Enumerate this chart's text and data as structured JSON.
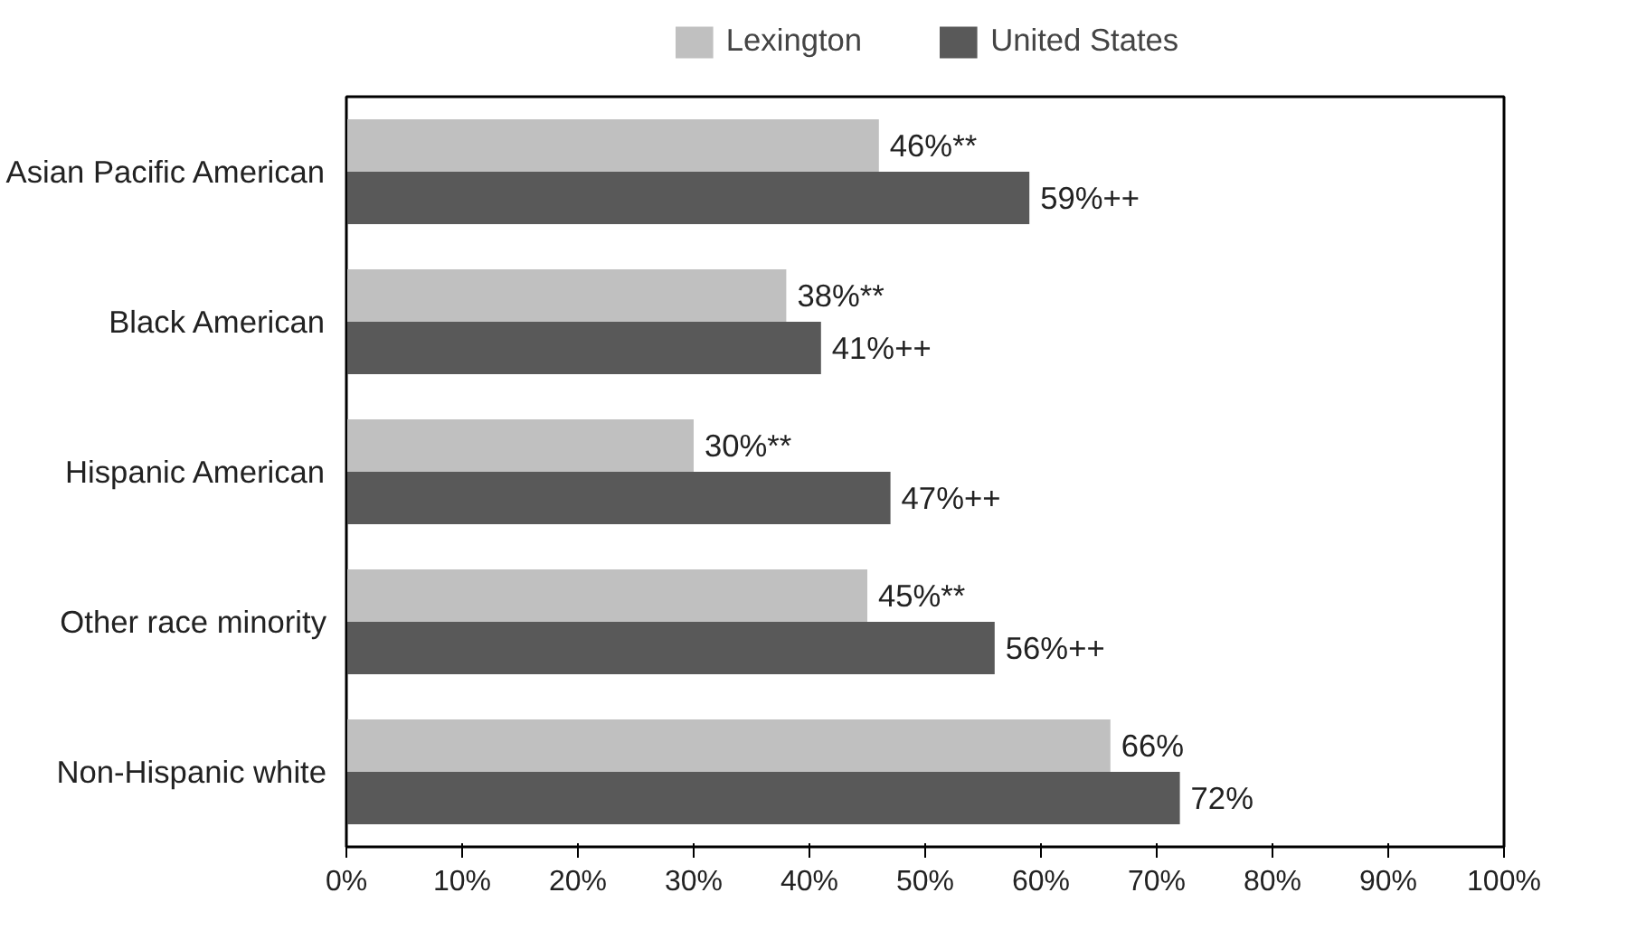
{
  "chart_data": {
    "type": "bar",
    "orientation": "horizontal",
    "categories": [
      "Asian Pacific American",
      "Black American",
      "Hispanic American",
      "Other race minority",
      "Non-Hispanic white"
    ],
    "series": [
      {
        "name": "Lexington",
        "color": "#c0c0c0",
        "values": [
          46,
          38,
          30,
          45,
          66
        ],
        "value_labels": [
          "46%**",
          "38%**",
          "30%**",
          "45%**",
          "66%"
        ]
      },
      {
        "name": "United States",
        "color": "#595959",
        "values": [
          59,
          41,
          47,
          56,
          72
        ],
        "value_labels": [
          "59%++",
          "41%++",
          "47%++",
          "56%++",
          "72%"
        ]
      }
    ],
    "xlim": [
      0,
      100
    ],
    "xticks": [
      {
        "value": 0,
        "label": "0%"
      },
      {
        "value": 10,
        "label": "10%"
      },
      {
        "value": 20,
        "label": "20%"
      },
      {
        "value": 30,
        "label": "30%"
      },
      {
        "value": 40,
        "label": "40%"
      },
      {
        "value": 50,
        "label": "50%"
      },
      {
        "value": 60,
        "label": "60%"
      },
      {
        "value": 70,
        "label": "70%"
      },
      {
        "value": 80,
        "label": "80%"
      },
      {
        "value": 90,
        "label": "90%"
      },
      {
        "value": 100,
        "label": "100%"
      }
    ],
    "grid": false,
    "legend": "top"
  }
}
